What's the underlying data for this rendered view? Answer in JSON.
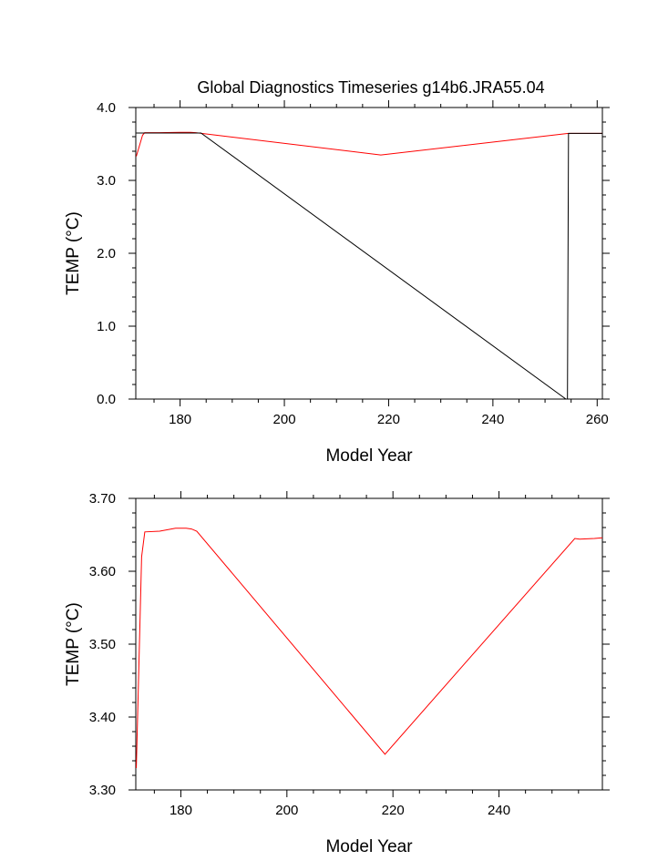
{
  "figure_title": "Global Diagnostics Timeseries g14b6.JRA55.04",
  "colors": {
    "ocean": "#ff0000",
    "global": "#000000",
    "axes": "#000000"
  },
  "chart_data": [
    {
      "type": "line",
      "title": "Global Diagnostics Timeseries g14b6.JRA55.04",
      "xlabel": "Model Year",
      "ylabel": "TEMP (°C)",
      "xlim": [
        171.5,
        261
      ],
      "ylim": [
        0,
        4.0
      ],
      "xticks": [
        180,
        200,
        220,
        240,
        260
      ],
      "xtick_labels": [
        "180",
        "200",
        "220",
        "240",
        "260"
      ],
      "yticks": [
        0,
        1,
        2,
        3,
        4
      ],
      "ytick_labels": [
        "0.0",
        "1.0",
        "2.0",
        "3.0",
        "4.0"
      ],
      "grid": false,
      "series": [
        {
          "name": "red",
          "color": "#ff0000",
          "x": [
            171.6,
            172.8,
            173.2,
            176,
            180,
            182,
            183,
            218.5,
            254.3,
            255,
            261
          ],
          "y": [
            3.33,
            3.62,
            3.654,
            3.655,
            3.659,
            3.659,
            3.655,
            3.349,
            3.644,
            3.645,
            3.646
          ]
        },
        {
          "name": "black",
          "color": "#000000",
          "x": [
            171.6,
            184,
            254.0,
            254.3,
            254.5,
            261
          ],
          "y": [
            3.65,
            3.65,
            0.0,
            0.0,
            3.645,
            3.645
          ]
        }
      ]
    },
    {
      "type": "line",
      "title": "",
      "xlabel": "Model Year",
      "ylabel": "TEMP (°C)",
      "xlim": [
        171.5,
        259.5
      ],
      "ylim": [
        3.3,
        3.7
      ],
      "xticks": [
        180,
        200,
        220,
        240
      ],
      "xtick_labels": [
        "180",
        "200",
        "220",
        "240"
      ],
      "yticks": [
        3.3,
        3.4,
        3.5,
        3.6,
        3.7
      ],
      "ytick_labels": [
        "3.30",
        "3.40",
        "3.50",
        "3.60",
        "3.70"
      ],
      "grid": false,
      "series": [
        {
          "name": "red",
          "color": "#ff0000",
          "x": [
            171.6,
            172.6,
            173.2,
            176,
            179,
            181,
            182,
            183,
            218.5,
            254.3,
            255.2,
            258,
            259.5
          ],
          "y": [
            3.33,
            3.62,
            3.654,
            3.655,
            3.659,
            3.659,
            3.658,
            3.655,
            3.349,
            3.645,
            3.644,
            3.645,
            3.646
          ]
        }
      ]
    }
  ]
}
